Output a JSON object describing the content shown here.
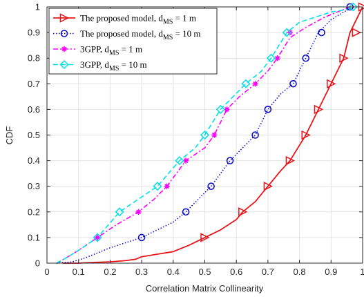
{
  "chart_data": {
    "type": "line",
    "title": "",
    "xlabel": "Correlation Matrix Collinearity",
    "ylabel": "CDF",
    "xlim": [
      0,
      1
    ],
    "ylim": [
      0,
      1
    ],
    "xticks": [
      "0",
      "0.1",
      "0.2",
      "0.3",
      "0.4",
      "0.5",
      "0.6",
      "0.7",
      "0.8",
      "0.9",
      "1"
    ],
    "yticks": [
      "0",
      "0.1",
      "0.2",
      "0.3",
      "0.4",
      "0.5",
      "0.6",
      "0.7",
      "0.8",
      "0.9",
      "1"
    ],
    "grid": true,
    "legend_position": "top-left",
    "series": [
      {
        "legend_main": "The proposed model, d",
        "legend_sub": "MS",
        "legend_tail": " = 1 m",
        "color": "#e8141a",
        "dash": "solid",
        "marker": "triangle-right",
        "x": [
          0.05,
          0.1,
          0.15,
          0.2,
          0.25,
          0.28,
          0.3,
          0.35,
          0.4,
          0.45,
          0.5,
          0.55,
          0.6,
          0.62,
          0.66,
          0.7,
          0.74,
          0.77,
          0.8,
          0.82,
          0.84,
          0.86,
          0.88,
          0.9,
          0.92,
          0.94,
          0.96,
          0.98,
          1.0
        ],
        "y": [
          0.0,
          0.0,
          0.003,
          0.005,
          0.01,
          0.015,
          0.025,
          0.035,
          0.045,
          0.07,
          0.1,
          0.13,
          0.17,
          0.2,
          0.24,
          0.3,
          0.36,
          0.4,
          0.46,
          0.5,
          0.55,
          0.6,
          0.65,
          0.7,
          0.75,
          0.8,
          0.9,
          0.95,
          1.0
        ],
        "marker_x": [
          0.5,
          0.62,
          0.7,
          0.77,
          0.82,
          0.86,
          0.9,
          0.94,
          0.98,
          1.0
        ],
        "marker_y": [
          0.1,
          0.2,
          0.3,
          0.4,
          0.5,
          0.6,
          0.7,
          0.8,
          0.9,
          1.0
        ]
      },
      {
        "legend_main": "The proposed model, d",
        "legend_sub": "MS",
        "legend_tail": " = 10 m",
        "color": "#1010c8",
        "dash": "dotted",
        "marker": "circle",
        "x": [
          0.03,
          0.08,
          0.12,
          0.16,
          0.2,
          0.25,
          0.3,
          0.35,
          0.4,
          0.44,
          0.48,
          0.52,
          0.55,
          0.58,
          0.62,
          0.66,
          0.7,
          0.74,
          0.78,
          0.82,
          0.86,
          0.9,
          0.94,
          0.97
        ],
        "y": [
          0.0,
          0.005,
          0.02,
          0.04,
          0.06,
          0.08,
          0.1,
          0.13,
          0.16,
          0.2,
          0.25,
          0.3,
          0.35,
          0.4,
          0.45,
          0.5,
          0.6,
          0.66,
          0.7,
          0.8,
          0.9,
          0.95,
          0.98,
          1.0
        ],
        "marker_x": [
          0.3,
          0.44,
          0.52,
          0.58,
          0.66,
          0.7,
          0.78,
          0.82,
          0.87,
          0.96
        ],
        "marker_y": [
          0.1,
          0.2,
          0.3,
          0.4,
          0.5,
          0.6,
          0.7,
          0.8,
          0.9,
          1.0
        ]
      },
      {
        "legend_main": "3GPP, d",
        "legend_sub": "MS",
        "legend_tail": " = 1 m",
        "color": "#ff00ff",
        "dash": "dashdot",
        "marker": "star",
        "x": [
          0.03,
          0.06,
          0.1,
          0.16,
          0.22,
          0.29,
          0.34,
          0.38,
          0.44,
          0.5,
          0.53,
          0.57,
          0.61,
          0.66,
          0.7,
          0.73,
          0.77,
          0.82,
          0.88,
          0.92,
          0.96
        ],
        "y": [
          0.0,
          0.02,
          0.05,
          0.1,
          0.15,
          0.2,
          0.25,
          0.3,
          0.4,
          0.45,
          0.5,
          0.6,
          0.65,
          0.7,
          0.75,
          0.8,
          0.88,
          0.92,
          0.96,
          0.98,
          1.0
        ],
        "marker_x": [
          0.16,
          0.29,
          0.38,
          0.44,
          0.53,
          0.57,
          0.66,
          0.73,
          0.77
        ],
        "marker_y": [
          0.1,
          0.2,
          0.3,
          0.4,
          0.5,
          0.6,
          0.7,
          0.8,
          0.9
        ]
      },
      {
        "legend_main": "3GPP, d",
        "legend_sub": "MS",
        "legend_tail": " = 10 m",
        "color": "#00e0e6",
        "dash": "dashed",
        "marker": "diamond",
        "x": [
          0.03,
          0.06,
          0.1,
          0.16,
          0.23,
          0.29,
          0.35,
          0.42,
          0.47,
          0.5,
          0.55,
          0.59,
          0.63,
          0.68,
          0.71,
          0.76,
          0.8,
          0.85,
          0.9,
          0.95,
          0.97
        ],
        "y": [
          0.0,
          0.02,
          0.05,
          0.1,
          0.2,
          0.25,
          0.3,
          0.4,
          0.45,
          0.5,
          0.6,
          0.65,
          0.7,
          0.75,
          0.8,
          0.9,
          0.94,
          0.96,
          0.98,
          0.99,
          1.0
        ],
        "marker_x": [
          0.16,
          0.23,
          0.35,
          0.42,
          0.5,
          0.55,
          0.63,
          0.71,
          0.76,
          0.97
        ],
        "marker_y": [
          0.1,
          0.2,
          0.3,
          0.4,
          0.5,
          0.6,
          0.7,
          0.8,
          0.9,
          1.0
        ]
      }
    ]
  }
}
